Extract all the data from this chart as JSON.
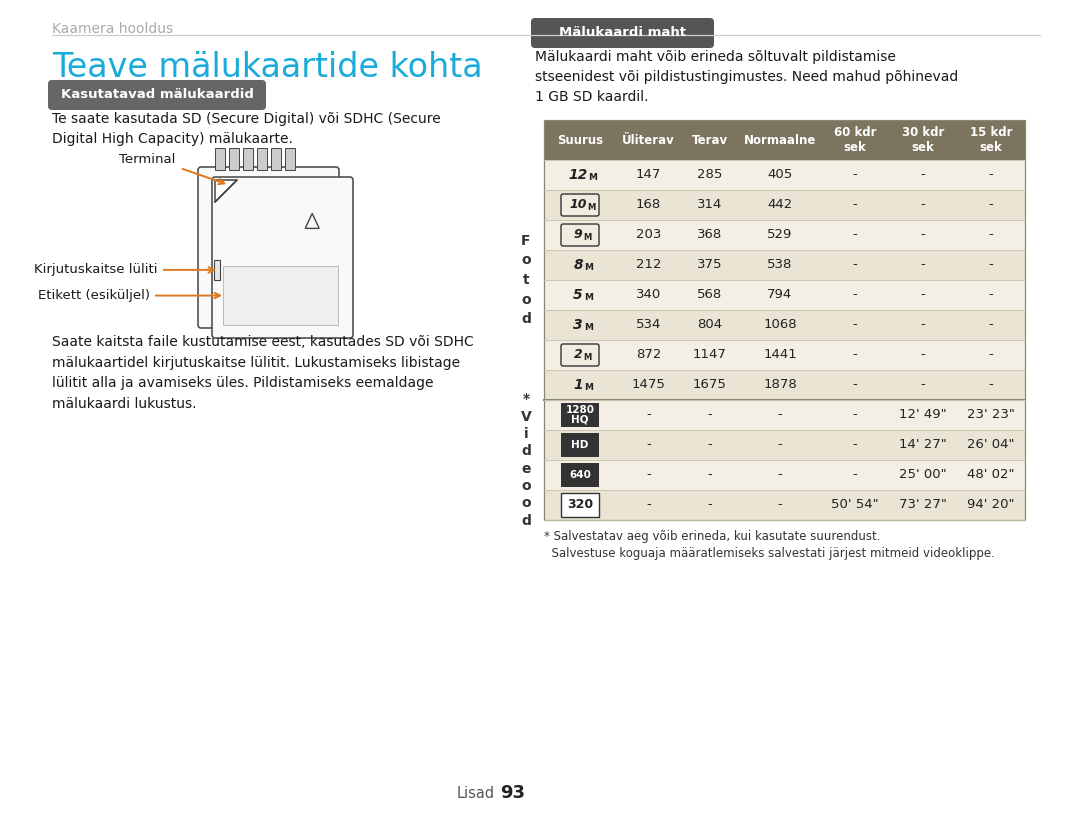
{
  "page_bg": "#ffffff",
  "header_text": "Kaamera hooldus",
  "header_color": "#aaaaaa",
  "header_line_color": "#cccccc",
  "title_text": "Teave mälukaartide kohta",
  "title_color": "#1aabdb",
  "title_fontsize": 24,
  "section1_badge": "Kasutatavad mälukaardid",
  "section1_badge_bg": "#666666",
  "section1_badge_fg": "#ffffff",
  "section1_text1": "Te saate kasutada SD (Secure Digital) või SDHC (Secure\nDigital High Capacity) mälukaarte.",
  "section1_text2": "Saate kaitsta faile kustutamise eest, kasutades SD või SDHC\nmälukaartidel kirjutuskaitse lülitit. Lukustamiseks libistage\nlülitit alla ja avamiseks üles. Pildistamiseks eemaldage\nmälukaardi lukustus.",
  "label_terminal": "Terminal",
  "label_switch": "Kirjutuskaitse lüliti",
  "label_label": "Etikett (esiküljel)",
  "arrow_color": "#e07820",
  "section2_badge": "Mälukaardi maht",
  "section2_badge_bg": "#555555",
  "section2_badge_fg": "#ffffff",
  "section2_intro": "Mälukaardi maht võib erineda sõltuvalt pildistamise\nstseenidest või pildistustingimustes. Need mahud põhinevad\n1 GB SD kaardil.",
  "table_header_bg": "#7d7460",
  "table_header_fg": "#ffffff",
  "table_row_bg1": "#f4efe5",
  "table_row_bg2": "#eae4d5",
  "table_border_color": "#c8bfa8",
  "table_sep_color": "#888870",
  "table_headers": [
    "Suurus",
    "Üliterav",
    "Terav",
    "Normaalne",
    "60 kdr\nsek",
    "30 kdr\nsek",
    "15 kdr\nsek"
  ],
  "size_labels_photo": [
    "12ₘ",
    "10ₘ",
    "9ₘ",
    "8ₘ",
    "5ₘ",
    "3ₘ",
    "2ₘ",
    "1ₘ"
  ],
  "size_labels_video": [
    "1280\nHQ",
    "HD",
    "640",
    "320"
  ],
  "photo_rows_data": [
    [
      "147",
      "285",
      "405",
      "-",
      "-",
      "-"
    ],
    [
      "168",
      "314",
      "442",
      "-",
      "-",
      "-"
    ],
    [
      "203",
      "368",
      "529",
      "-",
      "-",
      "-"
    ],
    [
      "212",
      "375",
      "538",
      "-",
      "-",
      "-"
    ],
    [
      "340",
      "568",
      "794",
      "-",
      "-",
      "-"
    ],
    [
      "534",
      "804",
      "1068",
      "-",
      "-",
      "-"
    ],
    [
      "872",
      "1147",
      "1441",
      "-",
      "-",
      "-"
    ],
    [
      "1475",
      "1675",
      "1878",
      "-",
      "-",
      "-"
    ]
  ],
  "video_rows_data": [
    [
      "-",
      "-",
      "-",
      "-",
      "12' 49\"",
      "23' 23\""
    ],
    [
      "-",
      "-",
      "-",
      "-",
      "14' 27\"",
      "26' 04\""
    ],
    [
      "-",
      "-",
      "-",
      "-",
      "25' 00\"",
      "48' 02\""
    ],
    [
      "-",
      "-",
      "-",
      "50' 54\"",
      "73' 27\"",
      "94' 20\""
    ]
  ],
  "photo_label": "F\no\nt\no\nd",
  "video_label": "*\nV\ni\nd\ne\no\no\nd",
  "footnote1": "* Salvestatav aeg võib erineda, kui kasutate suurendust.",
  "footnote2": "  Salvestuse koguaja määratlemiseks salvestati järjest mitmeid videoklippe.",
  "footer_text": "Lisad",
  "footer_page": "93",
  "card_edge": "#444444",
  "card_face": "#f9f9f9",
  "card_contact": "#cccccc"
}
